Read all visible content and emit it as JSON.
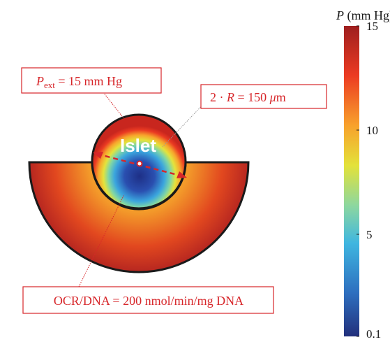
{
  "colorbar": {
    "title_italic": "P",
    "title_unit": " (mm Hg)",
    "ticks": [
      {
        "label": "15",
        "value": 15
      },
      {
        "label": "10",
        "value": 10
      },
      {
        "label": "5",
        "value": 5
      },
      {
        "label": "0.1",
        "value": 0.1
      }
    ],
    "range": [
      0.1,
      15
    ],
    "colors": [
      "#22307c",
      "#2e6fbf",
      "#3fb6e0",
      "#8cd7a0",
      "#e3e23a",
      "#f8a12c",
      "#ec3b22",
      "#9e1f1f"
    ]
  },
  "islet_label": "Islet",
  "annotations": {
    "pext": {
      "symbol": "P",
      "subscript": "ext",
      "rest": " = 15 mm Hg"
    },
    "diameter": {
      "prefix": "2 · ",
      "symbol": "R",
      "rest": " = 150 ",
      "unit_mu": "μ",
      "unit_rest": "m"
    },
    "ocr": {
      "text": "OCR/DNA = 200 nmol/min/mg DNA"
    }
  },
  "colors": {
    "annotation_red": "#d7262a",
    "outline": "#1a1a1a",
    "islet_center": "#1e2f86",
    "tissue_top": "#b32420",
    "tissue_bottom": "#f6b52f"
  }
}
